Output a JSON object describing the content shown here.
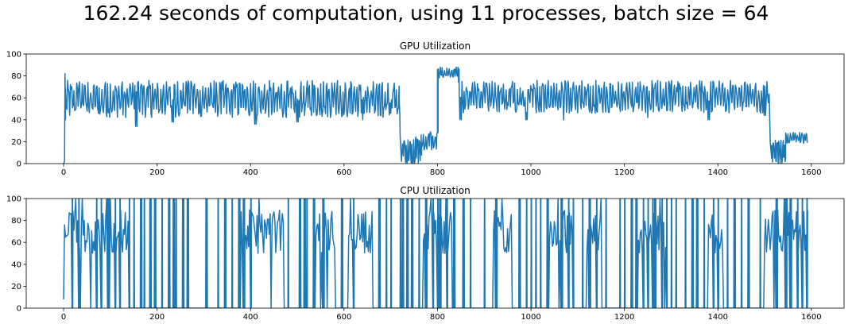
{
  "suptitle": "162.24 seconds of computation, using 11 processes, batch size = 64",
  "chart_data": [
    {
      "type": "line",
      "title": "GPU Utilization",
      "xlim": [
        -80,
        1670
      ],
      "ylim": [
        0,
        100
      ],
      "xticks": [
        0,
        200,
        400,
        600,
        800,
        1000,
        1200,
        1400,
        1600
      ],
      "yticks": [
        0,
        20,
        40,
        60,
        80,
        100
      ],
      "grid": false,
      "color": "#1f77b4",
      "series": [
        {
          "segments": [
            {
              "x_start": 0,
              "x_end": 3,
              "points": [
                [
                  0,
                  0
                ],
                [
                  2,
                  2
                ],
                [
                  3,
                  82
                ],
                [
                  4,
                  40
                ]
              ]
            },
            {
              "x_start": 4,
              "x_end": 718,
              "low": 42,
              "high": 76,
              "period": 6,
              "dips": [
                [
                  155,
                  34
                ],
                [
                  233,
                  38
                ],
                [
                  410,
                  36
                ],
                [
                  500,
                  38
                ],
                [
                  640,
                  40
                ],
                [
                  700,
                  46
                ]
              ]
            },
            {
              "x_start": 718,
              "x_end": 725,
              "points": [
                [
                  718,
                  60
                ],
                [
                  720,
                  26
                ],
                [
                  723,
                  2
                ],
                [
                  725,
                  18
                ]
              ]
            },
            {
              "x_start": 725,
              "x_end": 765,
              "low": 0,
              "high": 25,
              "period": 4
            },
            {
              "x_start": 765,
              "x_end": 800,
              "low": 12,
              "high": 30,
              "period": 5
            },
            {
              "x_start": 800,
              "x_end": 845,
              "low": 78,
              "high": 88,
              "period": 5
            },
            {
              "x_start": 845,
              "x_end": 1510,
              "low": 46,
              "high": 76,
              "period": 6,
              "dips": [
                [
                  850,
                  40
                ],
                [
                  990,
                  40
                ],
                [
                  1070,
                  40
                ],
                [
                  1250,
                  42
                ],
                [
                  1380,
                  40
                ],
                [
                  1500,
                  44
                ]
              ]
            },
            {
              "x_start": 1510,
              "x_end": 1515,
              "points": [
                [
                  1510,
                  60
                ],
                [
                  1512,
                  20
                ],
                [
                  1515,
                  5
                ]
              ]
            },
            {
              "x_start": 1515,
              "x_end": 1545,
              "low": 0,
              "high": 22,
              "period": 4
            },
            {
              "x_start": 1545,
              "x_end": 1592,
              "low": 18,
              "high": 29,
              "period": 5
            }
          ]
        }
      ]
    },
    {
      "type": "line",
      "title": "CPU Utilization",
      "xlim": [
        -80,
        1670
      ],
      "ylim": [
        0,
        100
      ],
      "xticks": [
        0,
        200,
        400,
        600,
        800,
        1000,
        1200,
        1400,
        1600
      ],
      "yticks": [
        0,
        20,
        40,
        60,
        80,
        100
      ],
      "grid": false,
      "color": "#1f77b4",
      "series": [
        {
          "active_ranges": [
            [
              0,
              25
            ],
            [
              25,
              75
            ],
            [
              75,
              140
            ],
            [
              380,
              470
            ],
            [
              540,
              580
            ],
            [
              610,
              660
            ],
            [
              770,
              830
            ],
            [
              920,
              960
            ],
            [
              1040,
              1090
            ],
            [
              1120,
              1150
            ],
            [
              1230,
              1290
            ],
            [
              1380,
              1410
            ],
            [
              1500,
              1600
            ]
          ],
          "active_low": 50,
          "active_high": 90,
          "spike_xs": [
            18,
            32,
            70,
            80,
            95,
            110,
            120,
            140,
            150,
            165,
            172,
            185,
            195,
            210,
            225,
            235,
            240,
            255,
            265,
            305,
            330,
            345,
            360,
            375,
            385,
            400,
            480,
            505,
            515,
            520,
            535,
            555,
            595,
            620,
            675,
            690,
            700,
            720,
            725,
            735,
            745,
            760,
            775,
            790,
            800,
            805,
            820,
            835,
            855,
            870,
            900,
            925,
            975,
            990,
            1000,
            1010,
            1020,
            1035,
            1065,
            1080,
            1090,
            1110,
            1125,
            1140,
            1160,
            1190,
            1200,
            1215,
            1225,
            1240,
            1250,
            1260,
            1265,
            1280,
            1290,
            1300,
            1310,
            1330,
            1345,
            1355,
            1370,
            1390,
            1400,
            1420,
            1435,
            1450,
            1465,
            1490,
            1525,
            1545,
            1555,
            1570,
            1580,
            1590
          ]
        }
      ]
    }
  ]
}
